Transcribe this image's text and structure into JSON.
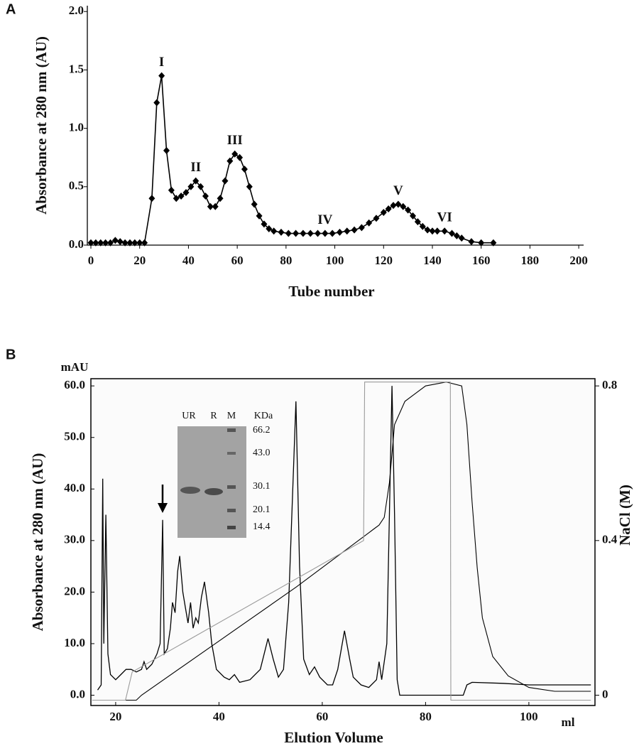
{
  "panel_labels": [
    "A",
    "B"
  ],
  "chart_data": [
    {
      "type": "line",
      "xlabel": "Tube number",
      "ylabel": "Absorbance at 280 nm (AU)",
      "color": "#000000",
      "x": [
        0,
        2,
        4,
        6,
        8,
        10,
        12,
        14,
        16,
        18,
        20,
        22,
        25,
        27,
        29,
        31,
        33,
        35,
        37,
        39,
        41,
        43,
        45,
        47,
        49,
        51,
        53,
        55,
        57,
        59,
        61,
        63,
        65,
        67,
        69,
        71,
        73,
        75,
        78,
        81,
        84,
        87,
        90,
        93,
        96,
        99,
        102,
        105,
        108,
        111,
        114,
        117,
        120,
        122,
        124,
        126,
        128,
        130,
        132,
        134,
        136,
        138,
        140,
        142,
        145,
        148,
        150,
        152,
        156,
        160,
        165
      ],
      "values": [
        0.02,
        0.02,
        0.02,
        0.02,
        0.02,
        0.04,
        0.03,
        0.02,
        0.02,
        0.02,
        0.02,
        0.02,
        0.4,
        1.22,
        1.45,
        0.81,
        0.47,
        0.4,
        0.42,
        0.45,
        0.5,
        0.55,
        0.5,
        0.42,
        0.33,
        0.33,
        0.4,
        0.55,
        0.72,
        0.78,
        0.75,
        0.65,
        0.5,
        0.35,
        0.25,
        0.18,
        0.14,
        0.12,
        0.11,
        0.1,
        0.1,
        0.1,
        0.1,
        0.1,
        0.1,
        0.1,
        0.11,
        0.12,
        0.13,
        0.15,
        0.19,
        0.23,
        0.28,
        0.31,
        0.34,
        0.35,
        0.33,
        0.3,
        0.25,
        0.2,
        0.16,
        0.13,
        0.12,
        0.12,
        0.12,
        0.1,
        0.08,
        0.06,
        0.03,
        0.02,
        0.02
      ],
      "xlim": [
        0,
        202
      ],
      "ylim": [
        0,
        2.05
      ],
      "xticks": [
        0,
        20,
        40,
        60,
        80,
        100,
        120,
        140,
        160,
        180,
        200
      ],
      "yticks": [
        {
          "value": 0,
          "label": "0.0"
        },
        {
          "value": 0.5,
          "label": "0.5"
        },
        {
          "value": 1,
          "label": "1.0"
        },
        {
          "value": 1.5,
          "label": "1.5"
        },
        {
          "value": 2,
          "label": "2.0"
        }
      ],
      "annotations": [
        {
          "text": "I",
          "x": 29,
          "y": 1.45
        },
        {
          "text": "II",
          "x": 43,
          "y": 0.55
        },
        {
          "text": "III",
          "x": 59,
          "y": 0.78
        },
        {
          "text": "IV",
          "x": 96,
          "y": 0.1
        },
        {
          "text": "V",
          "x": 126,
          "y": 0.35
        },
        {
          "text": "VI",
          "x": 145,
          "y": 0.12
        }
      ]
    },
    {
      "type": "line",
      "xlabel": "Elution Volume",
      "x_unit": "ml",
      "ylabel": "Absorbance  at  280  nm (AU)",
      "y_unit": "mAU",
      "y2label": "NaCl (M)",
      "xlim": [
        15.2,
        112.8
      ],
      "ylim": [
        -2,
        61.4
      ],
      "y2lim": [
        -0.0267,
        0.8187
      ],
      "xticks": [
        20,
        40,
        60,
        80,
        100
      ],
      "yticks": [
        {
          "value": 0,
          "label": "0.0"
        },
        {
          "value": 10,
          "label": "10.0"
        },
        {
          "value": 20,
          "label": "20.0"
        },
        {
          "value": 30,
          "label": "30.0"
        },
        {
          "value": 40,
          "label": "40.0"
        },
        {
          "value": 50,
          "label": "50.0"
        },
        {
          "value": 60,
          "label": "60.0"
        }
      ],
      "y2ticks": [
        0,
        0.4,
        0.8
      ],
      "series": [
        {
          "color": "#000000",
          "x": [
            16.5,
            17.2,
            17.5,
            17.7,
            18.1,
            18.5,
            19,
            20,
            21,
            22,
            23,
            24,
            25,
            25.5,
            26,
            27,
            28,
            28.6,
            29.1,
            29.4,
            30,
            30.6,
            31,
            31.5,
            32,
            32.4,
            33,
            33.5,
            34,
            34.5,
            35,
            35.5,
            36,
            36.6,
            37.2,
            38,
            38.6,
            39.5,
            41,
            42,
            43,
            44,
            46,
            48,
            49.5,
            50.5,
            51.5,
            52.5,
            53.5,
            54.9,
            55.6,
            56.4,
            57.5,
            58.5,
            59.5,
            61,
            62,
            63,
            64.3,
            65.3,
            66,
            67.5,
            69,
            70.5,
            71,
            71.5,
            72.5,
            73.5,
            74,
            74.5,
            75,
            76,
            87.3,
            88,
            89,
            95,
            100,
            105,
            112
          ],
          "values": [
            1,
            2,
            42,
            10,
            35,
            8,
            4,
            3,
            4,
            5,
            5,
            4.5,
            5,
            6.5,
            5,
            6,
            8,
            10,
            34,
            8,
            9,
            13,
            18,
            16,
            24,
            27,
            20,
            17,
            14,
            18,
            13,
            15,
            14,
            19,
            22,
            16,
            10,
            5,
            3.5,
            3,
            4,
            2.5,
            3,
            5,
            11,
            7,
            3.5,
            5,
            18,
            57,
            25,
            7,
            4,
            5.5,
            3.5,
            2,
            2,
            5,
            12.5,
            7,
            3.5,
            2,
            1.5,
            3,
            6.5,
            3,
            10,
            60,
            35,
            3,
            0,
            0,
            0,
            2,
            2.5,
            2.3,
            2,
            2,
            2
          ]
        },
        {
          "color": "#000000",
          "axis": "y2",
          "x": [
            15.5,
            24,
            25,
            40,
            55,
            69,
            70,
            71,
            72,
            73,
            74,
            76,
            78,
            80,
            84,
            87,
            88,
            89,
            90,
            91,
            93,
            96,
            100,
            105,
            112
          ],
          "values": [
            -0.013,
            -0.013,
            0,
            0.14,
            0.28,
            0.42,
            0.43,
            0.44,
            0.46,
            0.55,
            0.7,
            0.76,
            0.78,
            0.8,
            0.81,
            0.8,
            0.7,
            0.5,
            0.33,
            0.2,
            0.1,
            0.05,
            0.02,
            0.01,
            0.01
          ]
        },
        {
          "color": "#9a9a9a",
          "axis": "y2",
          "x": [
            15.5,
            21.9,
            23.2,
            68,
            68.2,
            84.8,
            84.9,
            112
          ],
          "values": [
            -0.013,
            -0.013,
            0.06,
            0.4,
            0.81,
            0.81,
            -0.013,
            -0.013
          ]
        }
      ],
      "inset": {
        "lane_labels": [
          "UR",
          "R",
          "M",
          "KDa"
        ],
        "mw_labels": [
          "66.2",
          "43.0",
          "30.1",
          "20.1",
          "14.4"
        ]
      }
    }
  ]
}
